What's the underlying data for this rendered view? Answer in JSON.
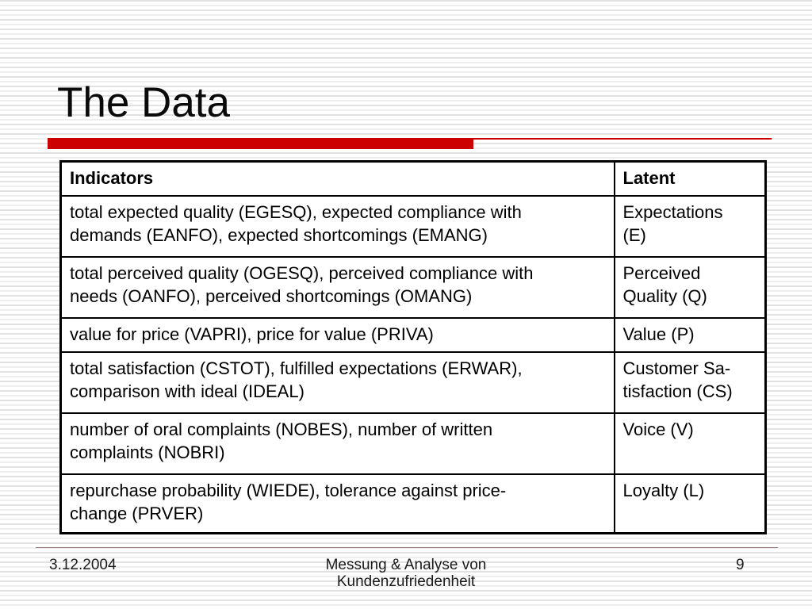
{
  "slide": {
    "title": "The Data",
    "accent_color": "#cc0000"
  },
  "table": {
    "headers": [
      "Indicators",
      "Latent"
    ],
    "rows": [
      {
        "indicators": "total expected quality (EGESQ), expected compliance with\ndemands (EANFO), expected shortcomings (EMANG)",
        "latent": "Expectations\n(E)"
      },
      {
        "indicators": "total perceived quality (OGESQ), perceived compliance with\nneeds (OANFO), perceived shortcomings (OMANG)",
        "latent": "Perceived\nQuality (Q)"
      },
      {
        "indicators": "value for price (VAPRI), price for value (PRIVA)",
        "latent": "Value (P)"
      },
      {
        "indicators": "total satisfaction (CSTOT), fulfilled expectations (ERWAR),\ncomparison with ideal (IDEAL)",
        "latent": "Customer Sa-\ntisfaction (CS)"
      },
      {
        "indicators": "number of oral complaints (NOBES), number of written\ncomplaints (NOBRI)",
        "latent": "Voice (V)"
      },
      {
        "indicators": "repurchase probability (WIEDE), tolerance against price-\nchange (PRVER)",
        "latent": "Loyalty (L)"
      }
    ]
  },
  "footer": {
    "date": "3.12.2004",
    "center": "Messung & Analyse von\nKundenzufriedenheit",
    "page_number": "9"
  }
}
